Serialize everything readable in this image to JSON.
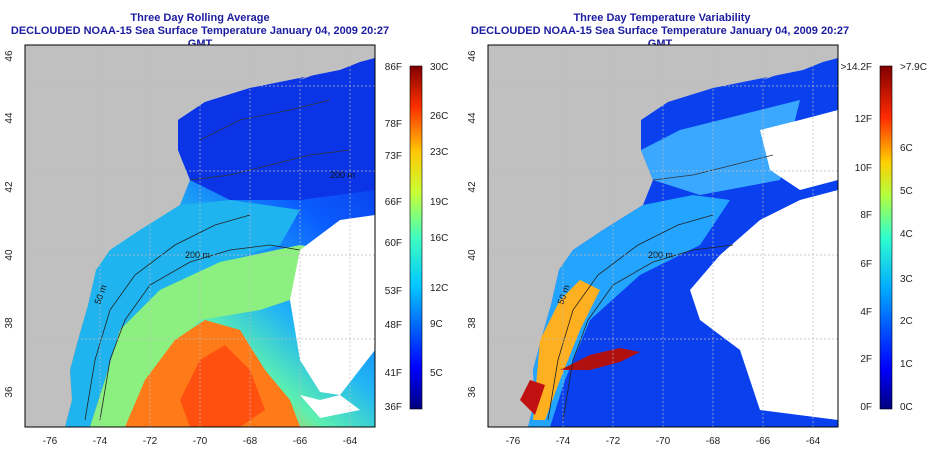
{
  "left": {
    "title": "Three Day Rolling Average",
    "subtitle": "DECLOUDED NOAA-15 Sea Surface Temperature January 04, 2009 20:27 GMT",
    "colorbar": {
      "f_labels": [
        "86F",
        "78F",
        "73F",
        "66F",
        "60F",
        "53F",
        "48F",
        "41F",
        "36F"
      ],
      "c_labels": [
        "30C",
        "26C",
        "23C",
        "19C",
        "16C",
        "12C",
        "9C",
        "5C"
      ]
    },
    "contours": [
      "200 m",
      "200 m",
      "50 m"
    ]
  },
  "right": {
    "title": "Three Day Temperature Variability",
    "subtitle": "DECLOUDED NOAA-15 Sea Surface Temperature January 04, 2009 20:27 GMT",
    "colorbar": {
      "f_labels": [
        ">14.2F",
        "12F",
        "10F",
        "8F",
        "6F",
        "4F",
        "2F",
        "0F"
      ],
      "c_labels": [
        ">7.9C",
        "6C",
        "5C",
        "4C",
        "3C",
        "2C",
        "1C",
        "0C"
      ]
    },
    "contours": [
      "200 m",
      "50 m"
    ]
  },
  "axes": {
    "lon_labels": [
      "-76",
      "-74",
      "-72",
      "-70",
      "-68",
      "-66",
      "-64"
    ],
    "lat_labels": [
      "46",
      "44",
      "42",
      "40",
      "38",
      "36"
    ]
  },
  "colors": {
    "title": "#1c1ca0",
    "land": "#c0c0c0",
    "cloud": "#ffffff"
  }
}
